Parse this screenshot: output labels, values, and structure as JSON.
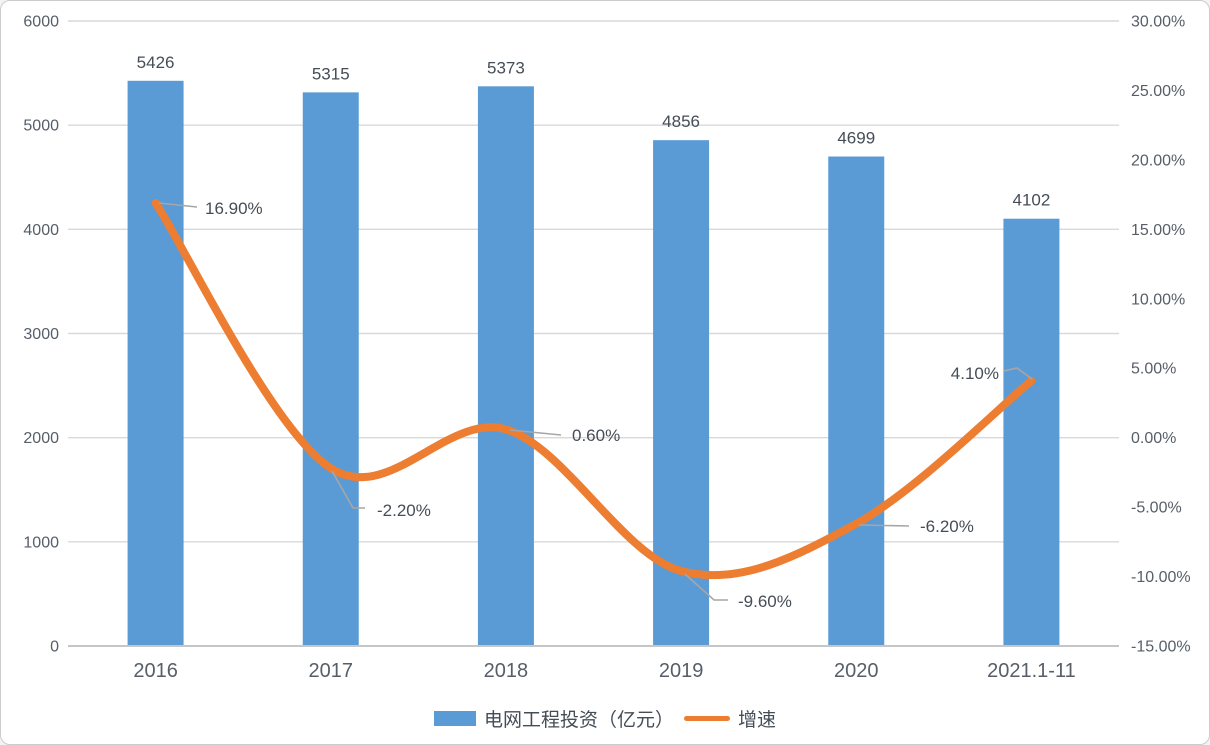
{
  "chart_data": {
    "type": "bar",
    "subtype": "combo-bar-line-dual-axis",
    "title": "",
    "categories": [
      "2016",
      "2017",
      "2018",
      "2019",
      "2020",
      "2021.1-11"
    ],
    "series": [
      {
        "name": "电网工程投资（亿元）",
        "type": "bar",
        "axis": "left",
        "values": [
          5426,
          5315,
          5373,
          4856,
          4699,
          4102
        ],
        "data_labels": [
          "5426",
          "5315",
          "5373",
          "4856",
          "4699",
          "4102"
        ]
      },
      {
        "name": "增速",
        "type": "line",
        "smooth": true,
        "axis": "right",
        "values": [
          16.9,
          -2.2,
          0.6,
          -9.6,
          -6.2,
          4.1
        ],
        "data_labels": [
          "16.90%",
          "-2.20%",
          "0.60%",
          "-9.60%",
          "-6.20%",
          "4.10%"
        ]
      }
    ],
    "left_axis": {
      "min": 0,
      "max": 6000,
      "step": 1000,
      "ticks": [
        "0",
        "1000",
        "2000",
        "3000",
        "4000",
        "5000",
        "6000"
      ]
    },
    "right_axis": {
      "min": -15,
      "max": 30,
      "step": 5,
      "ticks": [
        "30.00%",
        "25.00%",
        "20.00%",
        "15.00%",
        "10.00%",
        "5.00%",
        "0.00%",
        "-5.00%",
        "-10.00%",
        "-15.00%"
      ]
    },
    "grid": true,
    "legend_position": "bottom",
    "colors": {
      "bar": "#5B9BD5",
      "line": "#ED7D31",
      "gridline": "#D9D9D9",
      "axis_line": "#C6C6C6",
      "leader": "#A6A6A6",
      "axis_text": "#565E68",
      "label_text": "#454D57",
      "border": "#CCCCCC",
      "background": "#FFFFFF"
    }
  },
  "legend": {
    "items": [
      {
        "label": "电网工程投资（亿元）",
        "marker": "bar"
      },
      {
        "label": "增速",
        "marker": "line"
      }
    ]
  }
}
